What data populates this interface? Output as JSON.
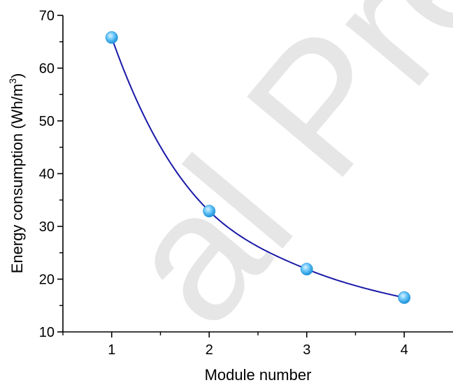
{
  "chart_data": {
    "type": "scatter",
    "xlabel": "Module number",
    "ylabel_main": "Energy consumption (Wh/m",
    "ylabel_sup": "3",
    "ylabel_close": ")",
    "xlim": [
      0.5,
      4.5
    ],
    "ylim": [
      10,
      70
    ],
    "x_ticks": [
      1,
      2,
      3,
      4
    ],
    "y_ticks": [
      10,
      20,
      30,
      40,
      50,
      60,
      70
    ],
    "grid": false,
    "series": [
      {
        "x": [
          1,
          2,
          3,
          4
        ],
        "y": [
          65.8,
          32.9,
          21.9,
          16.5
        ],
        "marker_color": "#4db3f0",
        "fit_line_color": "#1a1aa8"
      }
    ]
  },
  "watermark": {
    "text": "al Pre",
    "color": "#e6e6e6"
  }
}
